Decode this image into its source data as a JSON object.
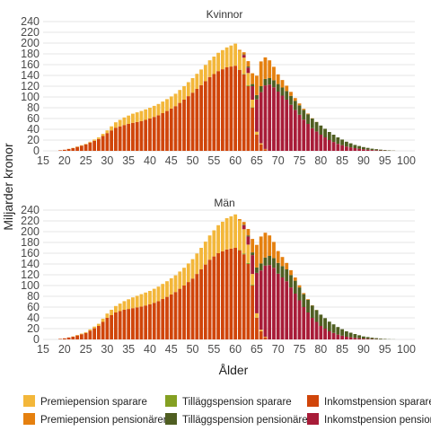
{
  "chart_data": {
    "type": "bar",
    "stacked": true,
    "ylabel": "Miljarder kronor",
    "xlabel": "Ålder",
    "xlim": [
      15,
      102
    ],
    "ylim": [
      0,
      240
    ],
    "x_ticks": [
      15,
      20,
      25,
      30,
      35,
      40,
      45,
      50,
      55,
      60,
      65,
      70,
      75,
      80,
      85,
      90,
      95,
      100
    ],
    "y_ticks": [
      0,
      20,
      40,
      60,
      80,
      100,
      120,
      140,
      160,
      180,
      200,
      220,
      240
    ],
    "grid": true,
    "legend_position": "bottom",
    "legend": [
      {
        "key": "inc_sav",
        "name": "Inkomstpension sparare",
        "color": "#d0450a"
      },
      {
        "key": "til_sav",
        "name": "Tilläggspension sparare",
        "color": "#84a022"
      },
      {
        "key": "pre_sav",
        "name": "Premiepension sparare",
        "color": "#f3b73a"
      },
      {
        "key": "inc_pen",
        "name": "Inkomstpension pensionärer",
        "color": "#a81c38"
      },
      {
        "key": "til_pen",
        "name": "Tilläggspension pensionärer",
        "color": "#4f5e21"
      },
      {
        "key": "pre_pen",
        "name": "Premiepension pensionärer",
        "color": "#e5800f"
      }
    ],
    "legend_layout": [
      [
        "pre_sav",
        "til_sav",
        "inc_sav"
      ],
      [
        "pre_pen",
        "til_pen",
        "inc_pen"
      ]
    ],
    "panels": [
      {
        "title": "Kvinnor",
        "anchors": {
          "inc_sav": [
            [
              18,
              0
            ],
            [
              19,
              1
            ],
            [
              20,
              2
            ],
            [
              22,
              5
            ],
            [
              25,
              12
            ],
            [
              28,
              22
            ],
            [
              30,
              33
            ],
            [
              32,
              43
            ],
            [
              34,
              48
            ],
            [
              36,
              52
            ],
            [
              38,
              55
            ],
            [
              40,
              60
            ],
            [
              42,
              66
            ],
            [
              44,
              74
            ],
            [
              46,
              83
            ],
            [
              48,
              95
            ],
            [
              50,
              108
            ],
            [
              52,
              122
            ],
            [
              54,
              137
            ],
            [
              56,
              148
            ],
            [
              58,
              155
            ],
            [
              60,
              158
            ],
            [
              61,
              150
            ],
            [
              62,
              142
            ],
            [
              63,
              120
            ],
            [
              64,
              80
            ],
            [
              65,
              30
            ],
            [
              66,
              12
            ],
            [
              67,
              3
            ],
            [
              68,
              0
            ]
          ],
          "pre_sav": [
            [
              18,
              0
            ],
            [
              19,
              0
            ],
            [
              20,
              0
            ],
            [
              22,
              0.5
            ],
            [
              25,
              1
            ],
            [
              28,
              3
            ],
            [
              30,
              5
            ],
            [
              32,
              10
            ],
            [
              34,
              14
            ],
            [
              36,
              17
            ],
            [
              38,
              19
            ],
            [
              40,
              20
            ],
            [
              42,
              21
            ],
            [
              44,
              22
            ],
            [
              46,
              23
            ],
            [
              48,
              25
            ],
            [
              50,
              27
            ],
            [
              52,
              29
            ],
            [
              54,
              31
            ],
            [
              56,
              34
            ],
            [
              58,
              37
            ],
            [
              60,
              41
            ],
            [
              61,
              35
            ],
            [
              62,
              30
            ],
            [
              63,
              23
            ],
            [
              64,
              14
            ],
            [
              65,
              5
            ],
            [
              66,
              2
            ],
            [
              67,
              0.5
            ],
            [
              68,
              0
            ]
          ],
          "til_sav": [
            [
              60,
              0
            ],
            [
              62,
              1
            ],
            [
              63,
              1.5
            ],
            [
              64,
              1
            ],
            [
              65,
              0.5
            ],
            [
              66,
              0
            ]
          ],
          "inc_pen": [
            [
              61,
              0
            ],
            [
              63,
              10
            ],
            [
              64,
              25
            ],
            [
              65,
              60
            ],
            [
              66,
              95
            ],
            [
              67,
              118
            ],
            [
              68,
              123
            ],
            [
              69,
              118
            ],
            [
              70,
              110
            ],
            [
              72,
              95
            ],
            [
              74,
              76
            ],
            [
              76,
              58
            ],
            [
              78,
              42
            ],
            [
              80,
              30
            ],
            [
              82,
              20
            ],
            [
              84,
              13
            ],
            [
              86,
              8
            ],
            [
              88,
              5
            ],
            [
              90,
              3
            ],
            [
              92,
              1.5
            ],
            [
              94,
              0.7
            ],
            [
              96,
              0.3
            ],
            [
              98,
              0
            ]
          ],
          "til_pen": [
            [
              61,
              0
            ],
            [
              63,
              2
            ],
            [
              64,
              4
            ],
            [
              65,
              8
            ],
            [
              66,
              11
            ],
            [
              67,
              12
            ],
            [
              68,
              12
            ],
            [
              69,
              13
            ],
            [
              70,
              14
            ],
            [
              72,
              16
            ],
            [
              74,
              17
            ],
            [
              76,
              18
            ],
            [
              78,
              18
            ],
            [
              80,
              17
            ],
            [
              82,
              15
            ],
            [
              84,
              12
            ],
            [
              86,
              9
            ],
            [
              88,
              6
            ],
            [
              90,
              4
            ],
            [
              92,
              2.5
            ],
            [
              94,
              1.5
            ],
            [
              96,
              0.7
            ],
            [
              98,
              0
            ]
          ],
          "pre_pen": [
            [
              60,
              0
            ],
            [
              62,
              4
            ],
            [
              63,
              10
            ],
            [
              64,
              20
            ],
            [
              65,
              36
            ],
            [
              66,
              46
            ],
            [
              67,
              40
            ],
            [
              68,
              33
            ],
            [
              69,
              25
            ],
            [
              70,
              18
            ],
            [
              72,
              10
            ],
            [
              74,
              5
            ],
            [
              76,
              2
            ],
            [
              78,
              0.5
            ],
            [
              80,
              0
            ]
          ]
        }
      },
      {
        "title": "Män",
        "anchors": {
          "inc_sav": [
            [
              18,
              0
            ],
            [
              19,
              1
            ],
            [
              20,
              2
            ],
            [
              22,
              5
            ],
            [
              25,
              12
            ],
            [
              28,
              25
            ],
            [
              30,
              40
            ],
            [
              32,
              50
            ],
            [
              34,
              55
            ],
            [
              36,
              58
            ],
            [
              38,
              61
            ],
            [
              40,
              65
            ],
            [
              42,
              71
            ],
            [
              44,
              79
            ],
            [
              46,
              88
            ],
            [
              48,
              100
            ],
            [
              50,
              113
            ],
            [
              52,
              130
            ],
            [
              54,
              148
            ],
            [
              56,
              160
            ],
            [
              58,
              167
            ],
            [
              60,
              170
            ],
            [
              61,
              165
            ],
            [
              62,
              158
            ],
            [
              63,
              140
            ],
            [
              64,
              100
            ],
            [
              65,
              40
            ],
            [
              66,
              15
            ],
            [
              67,
              4
            ],
            [
              68,
              0
            ]
          ],
          "pre_sav": [
            [
              18,
              0
            ],
            [
              19,
              0
            ],
            [
              20,
              0
            ],
            [
              22,
              0.5
            ],
            [
              25,
              1.5
            ],
            [
              28,
              4
            ],
            [
              30,
              8
            ],
            [
              32,
              12
            ],
            [
              34,
              16
            ],
            [
              36,
              20
            ],
            [
              38,
              23
            ],
            [
              40,
              25
            ],
            [
              42,
              27
            ],
            [
              44,
              29
            ],
            [
              46,
              31
            ],
            [
              48,
              33
            ],
            [
              50,
              36
            ],
            [
              52,
              40
            ],
            [
              54,
              45
            ],
            [
              56,
              52
            ],
            [
              58,
              58
            ],
            [
              60,
              62
            ],
            [
              61,
              55
            ],
            [
              62,
              45
            ],
            [
              63,
              34
            ],
            [
              64,
              20
            ],
            [
              65,
              8
            ],
            [
              66,
              3
            ],
            [
              67,
              1
            ],
            [
              68,
              0
            ]
          ],
          "til_sav": [
            [
              60,
              0
            ],
            [
              62,
              1.5
            ],
            [
              63,
              2
            ],
            [
              64,
              1.5
            ],
            [
              65,
              0.5
            ],
            [
              66,
              0
            ]
          ],
          "inc_pen": [
            [
              61,
              0
            ],
            [
              63,
              15
            ],
            [
              64,
              35
            ],
            [
              65,
              75
            ],
            [
              66,
              110
            ],
            [
              67,
              132
            ],
            [
              68,
              138
            ],
            [
              69,
              133
            ],
            [
              70,
              122
            ],
            [
              72,
              108
            ],
            [
              74,
              85
            ],
            [
              76,
              60
            ],
            [
              78,
              40
            ],
            [
              80,
              25
            ],
            [
              82,
              15
            ],
            [
              84,
              9
            ],
            [
              86,
              5
            ],
            [
              88,
              3
            ],
            [
              90,
              1.5
            ],
            [
              92,
              0.7
            ],
            [
              94,
              0.3
            ],
            [
              96,
              0
            ]
          ],
          "til_pen": [
            [
              61,
              0
            ],
            [
              63,
              2
            ],
            [
              64,
              5
            ],
            [
              65,
              10
            ],
            [
              66,
              13
            ],
            [
              67,
              15
            ],
            [
              68,
              17
            ],
            [
              69,
              18
            ],
            [
              70,
              20
            ],
            [
              72,
              22
            ],
            [
              74,
              24
            ],
            [
              76,
              24
            ],
            [
              78,
              23
            ],
            [
              80,
              21
            ],
            [
              82,
              18
            ],
            [
              84,
              14
            ],
            [
              86,
              10
            ],
            [
              88,
              7
            ],
            [
              90,
              4
            ],
            [
              92,
              2.5
            ],
            [
              94,
              1.2
            ],
            [
              96,
              0.4
            ],
            [
              98,
              0
            ]
          ],
          "pre_pen": [
            [
              60,
              0
            ],
            [
              62,
              5
            ],
            [
              63,
              12
            ],
            [
              64,
              25
            ],
            [
              65,
              42
            ],
            [
              66,
              50
            ],
            [
              67,
              46
            ],
            [
              68,
              38
            ],
            [
              69,
              30
            ],
            [
              70,
              22
            ],
            [
              72,
              12
            ],
            [
              74,
              6
            ],
            [
              76,
              2
            ],
            [
              78,
              0.5
            ],
            [
              80,
              0
            ]
          ]
        }
      }
    ]
  }
}
